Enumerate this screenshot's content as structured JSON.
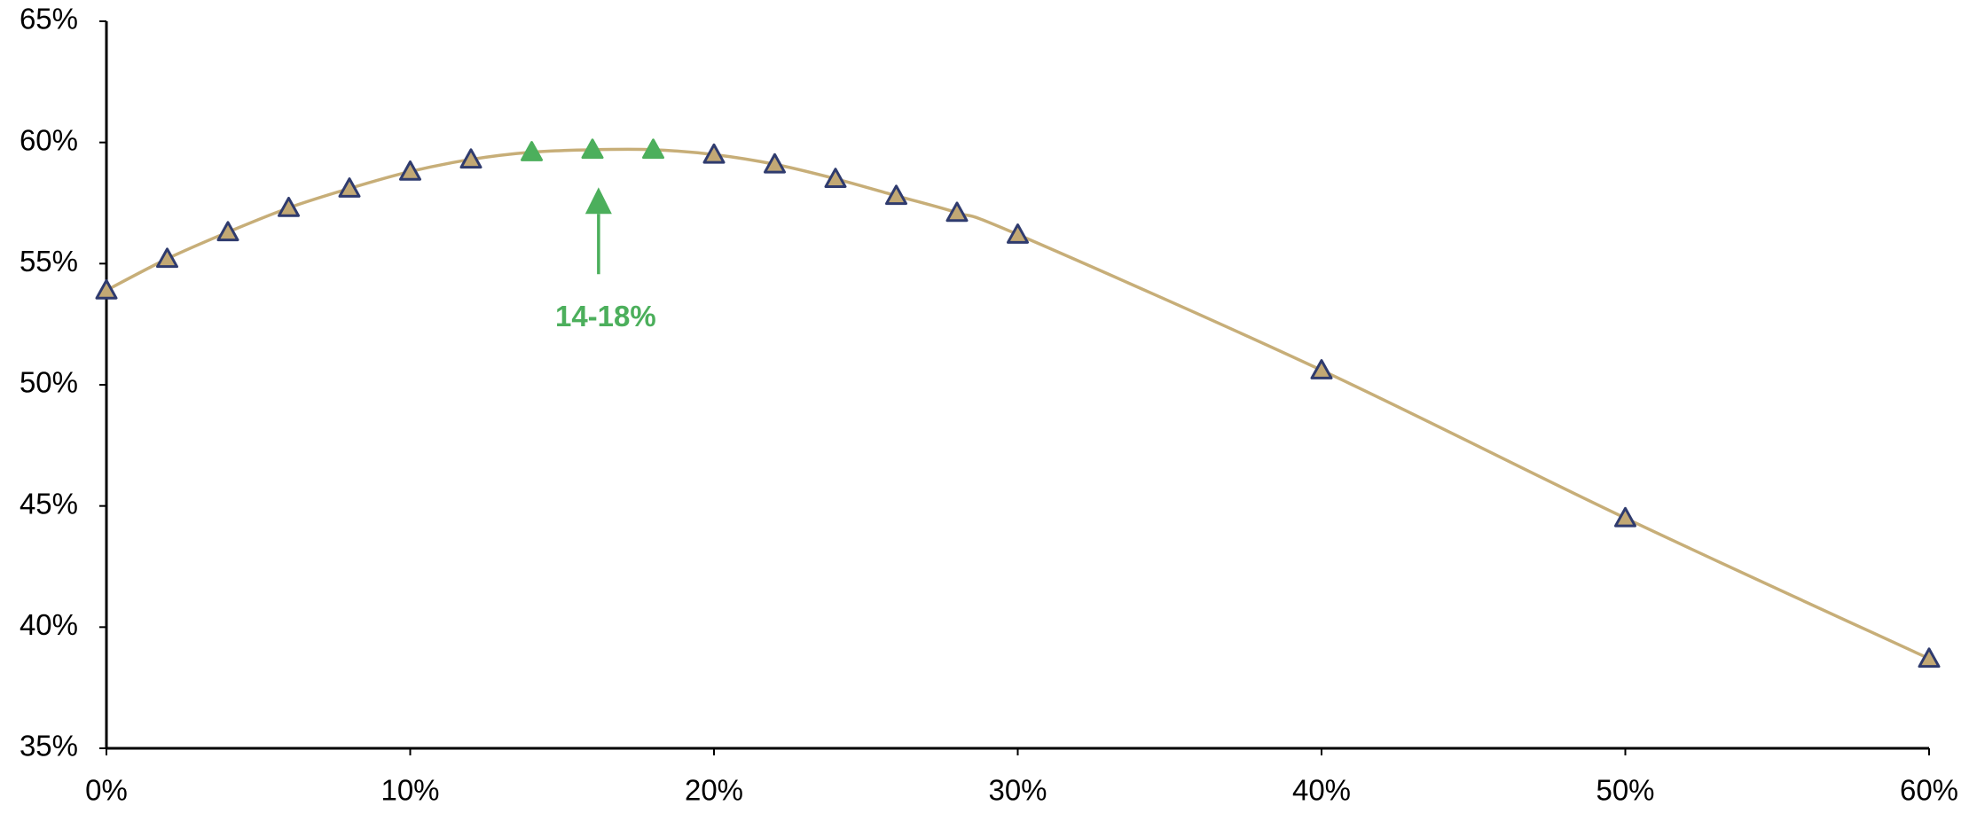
{
  "chart_data": {
    "type": "line",
    "x": [
      0,
      2,
      4,
      6,
      8,
      10,
      12,
      14,
      16,
      18,
      20,
      22,
      24,
      26,
      28,
      30,
      40,
      50,
      60
    ],
    "series": [
      {
        "color": "#c7ae78",
        "values": [
          53.9,
          55.2,
          56.3,
          57.3,
          58.1,
          58.8,
          59.3,
          59.6,
          59.7,
          59.7,
          59.5,
          59.1,
          58.5,
          57.8,
          57.1,
          56.2,
          50.6,
          44.5,
          38.7
        ],
        "marker": "triangle",
        "marker_colors": [
          "#c2a874",
          "#c2a874",
          "#c2a874",
          "#c2a874",
          "#c2a874",
          "#c2a874",
          "#c2a874",
          "#4caf5c",
          "#4caf5c",
          "#4caf5c",
          "#c2a874",
          "#c2a874",
          "#c2a874",
          "#c2a874",
          "#c2a874",
          "#c2a874",
          "#c2a874",
          "#c2a874",
          "#c2a874"
        ],
        "marker_edge_colors": [
          "#2f3b6e",
          "#2f3b6e",
          "#2f3b6e",
          "#2f3b6e",
          "#2f3b6e",
          "#2f3b6e",
          "#2f3b6e",
          "#4caf5c",
          "#4caf5c",
          "#4caf5c",
          "#2f3b6e",
          "#2f3b6e",
          "#2f3b6e",
          "#2f3b6e",
          "#2f3b6e",
          "#2f3b6e",
          "#2f3b6e",
          "#2f3b6e",
          "#2f3b6e"
        ]
      }
    ],
    "xlim": [
      0,
      60
    ],
    "xticks": [
      {
        "value": 0,
        "label": "0%"
      },
      {
        "value": 10,
        "label": "10%"
      },
      {
        "value": 20,
        "label": "20%"
      },
      {
        "value": 30,
        "label": "30%"
      },
      {
        "value": 40,
        "label": "40%"
      },
      {
        "value": 50,
        "label": "50%"
      },
      {
        "value": 60,
        "label": "60%"
      }
    ],
    "ylim": [
      35,
      65
    ],
    "yticks": [
      {
        "value": 35,
        "label": "35%"
      },
      {
        "value": 40,
        "label": "40%"
      },
      {
        "value": 45,
        "label": "45%"
      },
      {
        "value": 50,
        "label": "50%"
      },
      {
        "value": 55,
        "label": "55%"
      },
      {
        "value": 60,
        "label": "60%"
      },
      {
        "value": 65,
        "label": "65%"
      }
    ],
    "grid": false,
    "annotation": {
      "text": "14-18%",
      "x": 16.2,
      "y": 57.6,
      "color": "#4caf5c"
    }
  }
}
